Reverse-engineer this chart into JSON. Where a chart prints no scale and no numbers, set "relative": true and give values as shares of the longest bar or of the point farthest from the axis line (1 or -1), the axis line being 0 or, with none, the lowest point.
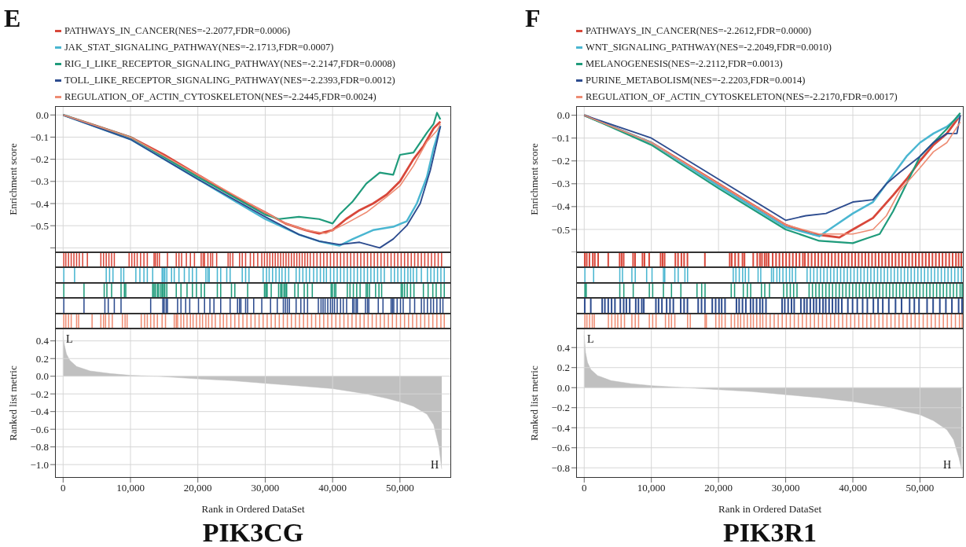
{
  "chart_data": [
    {
      "type": "line",
      "title": "E",
      "ylabel": "Enrichment score",
      "legend": "top",
      "grid": true,
      "tick_labels": "y",
      "xlim": [
        -1200,
        57600
      ],
      "xticks": [
        0,
        10000,
        20000,
        30000,
        40000,
        50000
      ],
      "ylim": [
        -0.62,
        0.04
      ],
      "yticks": [
        {
          "value": -0.6,
          "label": null
        },
        {
          "value": -0.5,
          "label": "−0.5"
        },
        {
          "value": -0.4,
          "label": "−0.4"
        },
        {
          "value": -0.3,
          "label": "−0.3"
        },
        {
          "value": -0.2,
          "label": "−0.2"
        },
        {
          "value": -0.1,
          "label": "−0.1"
        },
        {
          "value": 0,
          "label": "0.0"
        }
      ],
      "series": [
        {
          "name": "PATHWAYS_IN_CANCER(NES=-2.2077,FDR=0.0006)",
          "color": "#d8473a",
          "x": [
            0,
            5000,
            10000,
            15000,
            20000,
            25000,
            30000,
            33000,
            36000,
            38000,
            40000,
            42000,
            44000,
            46000,
            48000,
            50000,
            52000,
            53500,
            55000,
            56000
          ],
          "values": [
            0,
            -0.05,
            -0.1,
            -0.18,
            -0.27,
            -0.36,
            -0.44,
            -0.49,
            -0.52,
            -0.535,
            -0.52,
            -0.47,
            -0.43,
            -0.4,
            -0.36,
            -0.3,
            -0.2,
            -0.14,
            -0.06,
            -0.03
          ]
        },
        {
          "name": "JAK_STAT_SIGNALING_PATHWAY(NES=-2.1713,FDR=0.0007)",
          "color": "#4ab6d1",
          "x": [
            0,
            10000,
            20000,
            30000,
            35000,
            38000,
            41000,
            43000,
            46000,
            49000,
            51000,
            52500,
            54000,
            55000,
            56000
          ],
          "values": [
            0,
            -0.11,
            -0.29,
            -0.47,
            -0.54,
            -0.57,
            -0.59,
            -0.56,
            -0.52,
            -0.505,
            -0.48,
            -0.4,
            -0.28,
            -0.15,
            -0.05
          ]
        },
        {
          "name": "RIG_I_LIKE_RECEPTOR_SIGNALING_PATHWAY(NES=-2.2147,FDR=0.0008)",
          "color": "#1f9b7b",
          "x": [
            0,
            10000,
            20000,
            30000,
            32000,
            35000,
            38000,
            40000,
            41000,
            43000,
            45000,
            47000,
            49000,
            50000,
            52000,
            54000,
            55000,
            55500,
            56000
          ],
          "values": [
            0,
            -0.1,
            -0.28,
            -0.45,
            -0.47,
            -0.46,
            -0.47,
            -0.49,
            -0.45,
            -0.39,
            -0.31,
            -0.26,
            -0.27,
            -0.18,
            -0.17,
            -0.08,
            -0.04,
            0.01,
            -0.02
          ]
        },
        {
          "name": "TOLL_LIKE_RECEPTOR_SIGNALING_PATHWAY(NES=-2.2393,FDR=0.0012)",
          "color": "#2d4c8f",
          "x": [
            0,
            10000,
            20000,
            30000,
            35000,
            38000,
            41000,
            44000,
            47000,
            49000,
            51000,
            53000,
            54500,
            55500,
            56000
          ],
          "values": [
            0,
            -0.11,
            -0.29,
            -0.46,
            -0.54,
            -0.57,
            -0.585,
            -0.575,
            -0.6,
            -0.56,
            -0.5,
            -0.4,
            -0.25,
            -0.12,
            -0.05
          ]
        },
        {
          "name": "REGULATION_OF_ACTIN_CYTOSKELETON(NES=-2.2445,FDR=0.0024)",
          "color": "#ee8c73",
          "x": [
            0,
            10000,
            20000,
            30000,
            33000,
            36000,
            39000,
            42000,
            45000,
            48000,
            50000,
            52000,
            54000,
            55500,
            56000
          ],
          "values": [
            0,
            -0.1,
            -0.27,
            -0.44,
            -0.49,
            -0.52,
            -0.535,
            -0.49,
            -0.44,
            -0.37,
            -0.32,
            -0.23,
            -0.12,
            -0.07,
            -0.04
          ]
        }
      ]
    },
    {
      "type": "bar",
      "relative": true,
      "tick_labels": false,
      "xlim": [
        -1200,
        57600
      ],
      "color": "#d8473a",
      "x": [
        100,
        400,
        800,
        1200,
        1600,
        2000,
        2400,
        2900,
        3600,
        5600,
        6000,
        6400,
        6800,
        7200,
        7600,
        9800,
        10200,
        10600,
        11000,
        11500,
        12000,
        12500,
        13500,
        13700,
        14000,
        14300,
        15500,
        16800,
        17200,
        17600,
        18300,
        18900,
        19500,
        20500,
        20800,
        21000,
        21500,
        21900,
        22200,
        22800,
        24500,
        24800,
        25200,
        26200,
        26600,
        27100,
        27800,
        28300,
        28900,
        29500,
        29900,
        30300,
        30700,
        31100,
        31500,
        31900,
        32300,
        32700,
        33100,
        33500,
        33900,
        34300,
        34700,
        35100,
        35500,
        35900,
        36300,
        36700,
        37200,
        37700,
        38200,
        38700,
        39200,
        39700,
        40200,
        40700,
        41200,
        41700,
        42200,
        42700,
        43200,
        43700,
        44200,
        44700,
        45200,
        45700,
        46200,
        46700,
        47200,
        47700,
        48200,
        48700,
        49200,
        49700,
        50200,
        50700,
        51200,
        51700,
        52200,
        52700,
        53200,
        53700,
        54200,
        54700,
        55200,
        55700,
        56200
      ],
      "values": [
        1,
        1,
        1,
        1,
        1,
        1,
        1,
        1,
        1,
        1,
        1,
        1,
        1,
        1,
        1,
        1,
        1,
        1,
        1,
        1,
        1,
        1,
        1,
        1,
        1,
        1,
        1,
        1,
        1,
        1,
        1,
        1,
        1,
        1,
        1,
        1,
        1,
        1,
        1,
        1,
        1,
        1,
        1,
        1,
        1,
        1,
        1,
        1,
        1,
        1,
        1,
        1,
        1,
        1,
        1,
        1,
        1,
        1,
        1,
        1,
        1,
        1,
        1,
        1,
        1,
        1,
        1,
        1,
        1,
        1,
        1,
        1,
        1,
        1,
        1,
        1,
        1,
        1,
        1,
        1,
        1,
        1,
        1,
        1,
        1,
        1,
        1,
        1,
        1,
        1,
        1,
        1,
        1,
        1,
        1,
        1,
        1,
        1,
        1,
        1,
        1,
        1,
        1,
        1,
        1,
        1,
        1
      ]
    },
    {
      "type": "bar",
      "relative": true,
      "tick_labels": false,
      "xlim": [
        -1200,
        57600
      ],
      "color": "#4ab6d1",
      "x": [
        100,
        1700,
        6400,
        6900,
        7400,
        8600,
        9000,
        10800,
        11400,
        12000,
        12500,
        13300,
        14700,
        14900,
        15100,
        15400,
        16100,
        16500,
        17200,
        18000,
        18700,
        19200,
        19800,
        21200,
        21500,
        21700,
        22900,
        23400,
        24300,
        24800,
        26600,
        27100,
        27600,
        29700,
        30200,
        30600,
        31100,
        31600,
        32100,
        32500,
        33000,
        33500,
        34600,
        35100,
        35600,
        36100,
        36600,
        37200,
        37700,
        38200,
        38700,
        39100,
        39700,
        40200,
        40700,
        41200,
        41700,
        42200,
        42700,
        43200,
        43700,
        44200,
        44700,
        45200,
        45700,
        46200,
        46700,
        47200,
        47700,
        48700,
        49200,
        49700,
        50200,
        50700,
        51200,
        51600,
        52000,
        52500,
        53200,
        54100,
        54600,
        55100,
        55600,
        56100,
        56600
      ],
      "values": [
        1,
        1,
        1,
        1,
        1,
        1,
        1,
        1,
        1,
        1,
        1,
        1,
        1,
        1,
        1,
        1,
        1,
        1,
        1,
        1,
        1,
        1,
        1,
        1,
        1,
        1,
        1,
        1,
        1,
        1,
        1,
        1,
        1,
        1,
        1,
        1,
        1,
        1,
        1,
        1,
        1,
        1,
        1,
        1,
        1,
        1,
        1,
        1,
        1,
        1,
        1,
        1,
        1,
        1,
        1,
        1,
        1,
        1,
        1,
        1,
        1,
        1,
        1,
        1,
        1,
        1,
        1,
        1,
        1,
        1,
        1,
        1,
        1,
        1,
        1,
        1,
        1,
        1,
        1,
        1,
        1,
        1,
        1,
        1,
        1
      ]
    },
    {
      "type": "bar",
      "relative": true,
      "tick_labels": false,
      "xlim": [
        -1200,
        57600
      ],
      "color": "#1f9b7b",
      "x": [
        100,
        3100,
        6100,
        6500,
        7200,
        8600,
        9100,
        9300,
        13300,
        13500,
        13700,
        14000,
        14200,
        14500,
        14700,
        14900,
        15100,
        15400,
        16800,
        17500,
        18400,
        19200,
        19800,
        20500,
        21000,
        22900,
        23400,
        25000,
        25500,
        27400,
        29900,
        30100,
        30300,
        30900,
        32000,
        32300,
        32500,
        32800,
        33000,
        33200,
        34400,
        34900,
        35800,
        36300,
        37000,
        39800,
        40000,
        40300,
        40500,
        42200,
        42600,
        43100,
        43600,
        44100,
        45000,
        45200,
        45500,
        46400,
        46900,
        47300,
        50200,
        50400,
        50700,
        51100,
        51600,
        52100,
        53500,
        54200,
        54900,
        55400,
        56100,
        56600
      ],
      "values": [
        1,
        1,
        1,
        1,
        1,
        1,
        1,
        1,
        1,
        1,
        1,
        1,
        1,
        1,
        1,
        1,
        1,
        1,
        1,
        1,
        1,
        1,
        1,
        1,
        1,
        1,
        1,
        1,
        1,
        1,
        1,
        1,
        1,
        1,
        1,
        1,
        1,
        1,
        1,
        1,
        1,
        1,
        1,
        1,
        1,
        1,
        1,
        1,
        1,
        1,
        1,
        1,
        1,
        1,
        1,
        1,
        1,
        1,
        1,
        1,
        1,
        1,
        1,
        1,
        1,
        1,
        1,
        1,
        1,
        1,
        1,
        1
      ]
    },
    {
      "type": "bar",
      "relative": true,
      "tick_labels": false,
      "xlim": [
        -1200,
        57600
      ],
      "color": "#2d4c8f",
      "x": [
        100,
        3100,
        6200,
        6700,
        7600,
        8600,
        13000,
        14800,
        15000,
        15300,
        15500,
        17000,
        17500,
        18200,
        18800,
        20100,
        21000,
        21800,
        22400,
        23400,
        24800,
        25900,
        26200,
        26400,
        27100,
        27400,
        28300,
        29500,
        30800,
        31800,
        32700,
        33000,
        33300,
        33600,
        34600,
        35300,
        35800,
        36300,
        37900,
        38300,
        38600,
        38900,
        39300,
        39700,
        40000,
        40300,
        40700,
        41200,
        41600,
        42100,
        43000,
        43200,
        43500,
        43700,
        44900,
        45200,
        45400,
        46800,
        47500,
        48700,
        48900,
        49100,
        49600,
        50100,
        50500,
        51500,
        52200,
        53200,
        53600,
        54100,
        54600,
        55000,
        55500,
        56000,
        56400
      ],
      "values": [
        1,
        1,
        1,
        1,
        1,
        1,
        1,
        1,
        1,
        1,
        1,
        1,
        1,
        1,
        1,
        1,
        1,
        1,
        1,
        1,
        1,
        1,
        1,
        1,
        1,
        1,
        1,
        1,
        1,
        1,
        1,
        1,
        1,
        1,
        1,
        1,
        1,
        1,
        1,
        1,
        1,
        1,
        1,
        1,
        1,
        1,
        1,
        1,
        1,
        1,
        1,
        1,
        1,
        1,
        1,
        1,
        1,
        1,
        1,
        1,
        1,
        1,
        1,
        1,
        1,
        1,
        1,
        1,
        1,
        1,
        1,
        1,
        1,
        1,
        1
      ]
    },
    {
      "type": "bar",
      "relative": true,
      "tick_labels": false,
      "xlim": [
        -1200,
        57600
      ],
      "color": "#ee8c73",
      "x": [
        100,
        400,
        800,
        1200,
        2000,
        2300,
        4300,
        5600,
        6000,
        6300,
        6800,
        7300,
        8800,
        9200,
        9500,
        11600,
        12100,
        12500,
        13000,
        13500,
        14000,
        14700,
        15200,
        16500,
        16800,
        17000,
        17500,
        17900,
        18400,
        18900,
        19300,
        19800,
        20300,
        20700,
        21200,
        21600,
        22100,
        22600,
        23300,
        23800,
        24300,
        24900,
        25500,
        26100,
        26700,
        27300,
        27900,
        28500,
        29100,
        29700,
        30300,
        30900,
        31500,
        32100,
        32700,
        33300,
        33900,
        34500,
        35100,
        35700,
        36300,
        36900,
        37500,
        38100,
        38700,
        39300,
        39900,
        40500,
        41100,
        41700,
        42300,
        42900,
        43500,
        44100,
        44700,
        45300,
        45900,
        46500,
        47100,
        47700,
        48300,
        48900,
        49500,
        50100,
        50700,
        51300,
        51900,
        52500,
        53100,
        53700,
        54300,
        54900,
        55500,
        56100,
        56600
      ],
      "values": [
        1,
        1,
        1,
        1,
        1,
        1,
        1,
        1,
        1,
        1,
        1,
        1,
        1,
        1,
        1,
        1,
        1,
        1,
        1,
        1,
        1,
        1,
        1,
        1,
        1,
        1,
        1,
        1,
        1,
        1,
        1,
        1,
        1,
        1,
        1,
        1,
        1,
        1,
        1,
        1,
        1,
        1,
        1,
        1,
        1,
        1,
        1,
        1,
        1,
        1,
        1,
        1,
        1,
        1,
        1,
        1,
        1,
        1,
        1,
        1,
        1,
        1,
        1,
        1,
        1,
        1,
        1,
        1,
        1,
        1,
        1,
        1,
        1,
        1,
        1,
        1,
        1,
        1,
        1,
        1,
        1,
        1,
        1,
        1,
        1,
        1,
        1,
        1,
        1,
        1,
        1,
        1,
        1,
        1,
        1
      ]
    },
    {
      "type": "area",
      "color": "#c0c0c0",
      "xlabel": "Rank in Ordered DataSet",
      "ylabel": "Ranked list metric",
      "grid": true,
      "xlim": [
        -1200,
        57600
      ],
      "xticks": [
        0,
        {
          "value": 10000,
          "label": "10,000"
        },
        {
          "value": 20000,
          "label": "20,000"
        },
        {
          "value": 30000,
          "label": "30,000"
        },
        {
          "value": 40000,
          "label": "40,000"
        },
        {
          "value": 50000,
          "label": "50,000"
        }
      ],
      "ylim": [
        -1.15,
        0.54
      ],
      "yticks": [
        {
          "value": -1.0,
          "label": "−1.0"
        },
        {
          "value": -0.8,
          "label": "−0.8"
        },
        {
          "value": -0.6,
          "label": "−0.6"
        },
        {
          "value": -0.4,
          "label": "−0.4"
        },
        {
          "value": -0.2,
          "label": "−0.2"
        },
        {
          "value": 0,
          "label": "0.0"
        },
        {
          "value": 0.2,
          "label": "0.2"
        },
        {
          "value": 0.4,
          "label": "0.4"
        }
      ],
      "x": [
        0,
        200,
        500,
        1000,
        2000,
        4000,
        7000,
        10000,
        14000,
        20000,
        25000,
        30000,
        35000,
        40000,
        45000,
        48000,
        50000,
        52000,
        54000,
        55000,
        55800,
        56200
      ],
      "values": [
        0.45,
        0.35,
        0.25,
        0.18,
        0.11,
        0.06,
        0.03,
        0.01,
        0,
        -0.03,
        -0.05,
        -0.08,
        -0.11,
        -0.14,
        -0.2,
        -0.25,
        -0.29,
        -0.34,
        -0.43,
        -0.55,
        -0.8,
        -1.05
      ],
      "annotations": [
        "L",
        "H",
        "PIK3CG"
      ]
    },
    {
      "type": "line",
      "title": "F",
      "ylabel": "Enrichment score",
      "legend": "top",
      "grid": true,
      "tick_labels": "y",
      "xlim": [
        -1200,
        56500
      ],
      "xticks": [
        0,
        10000,
        20000,
        30000,
        40000,
        50000
      ],
      "ylim": [
        -0.6,
        0.04
      ],
      "yticks": [
        {
          "value": -0.6,
          "label": null
        },
        {
          "value": -0.5,
          "label": "−0.5"
        },
        {
          "value": -0.4,
          "label": "−0.4"
        },
        {
          "value": -0.3,
          "label": "−0.3"
        },
        {
          "value": -0.2,
          "label": "−0.2"
        },
        {
          "value": -0.1,
          "label": "−0.1"
        },
        {
          "value": 0,
          "label": "0.0"
        }
      ],
      "series": [
        {
          "name": "PATHWAYS_IN_CANCER(NES=-2.2612,FDR=0.0000)",
          "color": "#d8473a",
          "x": [
            0,
            10000,
            20000,
            30000,
            34000,
            38000,
            40000,
            43000,
            46000,
            48000,
            50000,
            52000,
            54000,
            56000
          ],
          "values": [
            0,
            -0.12,
            -0.3,
            -0.48,
            -0.52,
            -0.535,
            -0.5,
            -0.45,
            -0.35,
            -0.28,
            -0.2,
            -0.13,
            -0.08,
            0
          ]
        },
        {
          "name": "WNT_SIGNALING_PATHWAY(NES=-2.2049,FDR=0.0010)",
          "color": "#4ab6d1",
          "x": [
            0,
            10000,
            20000,
            30000,
            35000,
            37000,
            40000,
            43000,
            45000,
            48000,
            50000,
            52000,
            54000,
            56000
          ],
          "values": [
            0,
            -0.12,
            -0.31,
            -0.49,
            -0.53,
            -0.49,
            -0.43,
            -0.38,
            -0.3,
            -0.18,
            -0.12,
            -0.08,
            -0.05,
            0
          ]
        },
        {
          "name": "MELANOGENESIS(NES=-2.2112,FDR=0.0013)",
          "color": "#1f9b7b",
          "x": [
            0,
            10000,
            20000,
            30000,
            35000,
            40000,
            42000,
            44000,
            46000,
            48000,
            50000,
            52000,
            54000,
            56000
          ],
          "values": [
            0,
            -0.13,
            -0.32,
            -0.5,
            -0.55,
            -0.56,
            -0.54,
            -0.52,
            -0.42,
            -0.3,
            -0.18,
            -0.12,
            -0.06,
            0.01
          ]
        },
        {
          "name": "PURINE_METABOLISM(NES=-2.2203,FDR=0.0014)",
          "color": "#2d4c8f",
          "x": [
            0,
            10000,
            20000,
            30000,
            33000,
            36000,
            40000,
            43000,
            45000,
            47000,
            50000,
            52000,
            54000,
            55500,
            56000
          ],
          "values": [
            0,
            -0.1,
            -0.28,
            -0.46,
            -0.44,
            -0.43,
            -0.38,
            -0.37,
            -0.3,
            -0.25,
            -0.18,
            -0.12,
            -0.08,
            -0.08,
            0
          ]
        },
        {
          "name": "REGULATION_OF_ACTIN_CYTOSKELETON(NES=-2.2170,FDR=0.0017)",
          "color": "#ee8c73",
          "x": [
            0,
            10000,
            20000,
            30000,
            35000,
            40000,
            43000,
            45000,
            47000,
            50000,
            52000,
            54000,
            56000
          ],
          "values": [
            0,
            -0.12,
            -0.3,
            -0.48,
            -0.52,
            -0.52,
            -0.5,
            -0.44,
            -0.33,
            -0.23,
            -0.16,
            -0.12,
            -0.03
          ]
        }
      ]
    },
    {
      "type": "bar",
      "relative": true,
      "tick_labels": false,
      "xlim": [
        -1200,
        56500
      ],
      "color": "#d8473a",
      "x": [
        100,
        400,
        800,
        1300,
        1600,
        2100,
        3600,
        5300,
        5600,
        5900,
        7300,
        7600,
        8700,
        9000,
        9700,
        11400,
        11700,
        12000,
        13600,
        14000,
        14500,
        14900,
        15400,
        18000,
        21700,
        22000,
        22500,
        23000,
        23600,
        23900,
        25200,
        25800,
        26200,
        26500,
        26900,
        27200,
        27500,
        28100,
        28600,
        29100,
        29600,
        30100,
        30600,
        31100,
        31600,
        32100,
        32600,
        32900,
        33400,
        33900,
        34400,
        34900,
        35400,
        35900,
        36400,
        36900,
        37400,
        37900,
        38400,
        38900,
        39400,
        39900,
        40400,
        40900,
        41400,
        41900,
        42400,
        42900,
        43400,
        43900,
        44400,
        44900,
        45400,
        45900,
        46400,
        46900,
        47400,
        47900,
        48400,
        48900,
        49400,
        49900,
        50400,
        50900,
        51400,
        51900,
        52400,
        52900,
        53400,
        53900,
        54400,
        54900,
        55400,
        55800,
        56200
      ],
      "values": [
        1,
        1,
        1,
        1,
        1,
        1,
        1,
        1,
        1,
        1,
        1,
        1,
        1,
        1,
        1,
        1,
        1,
        1,
        1,
        1,
        1,
        1,
        1,
        1,
        1,
        1,
        1,
        1,
        1,
        1,
        1,
        1,
        1,
        1,
        1,
        1,
        1,
        1,
        1,
        1,
        1,
        1,
        1,
        1,
        1,
        1,
        1,
        1,
        1,
        1,
        1,
        1,
        1,
        1,
        1,
        1,
        1,
        1,
        1,
        1,
        1,
        1,
        1,
        1,
        1,
        1,
        1,
        1,
        1,
        1,
        1,
        1,
        1,
        1,
        1,
        1,
        1,
        1,
        1,
        1,
        1,
        1,
        1,
        1,
        1,
        1,
        1,
        1,
        1,
        1,
        1,
        1,
        1,
        1,
        1
      ]
    },
    {
      "type": "bar",
      "relative": true,
      "tick_labels": false,
      "xlim": [
        -1200,
        56500
      ],
      "color": "#4ab6d1",
      "x": [
        100,
        1400,
        5300,
        5700,
        7100,
        7600,
        9300,
        10100,
        11800,
        12000,
        13500,
        14000,
        15000,
        15400,
        22200,
        22600,
        23100,
        23600,
        24000,
        24500,
        25900,
        26300,
        27900,
        28200,
        28700,
        29100,
        29600,
        30100,
        30600,
        31000,
        31500,
        33200,
        33700,
        34200,
        34700,
        35200,
        35700,
        36200,
        36700,
        37200,
        37700,
        38200,
        38700,
        39200,
        39700,
        40200,
        40700,
        41200,
        41700,
        42200,
        42700,
        43200,
        43700,
        44200,
        44700,
        45200,
        45700,
        46200,
        46700,
        47200,
        47700,
        48200,
        48700,
        49200,
        49700,
        50200,
        50700,
        51200,
        51700,
        52200,
        52700,
        53200,
        53700,
        54200,
        54700,
        55200,
        55700,
        56200
      ],
      "values": [
        1,
        1,
        1,
        1,
        1,
        1,
        1,
        1,
        1,
        1,
        1,
        1,
        1,
        1,
        1,
        1,
        1,
        1,
        1,
        1,
        1,
        1,
        1,
        1,
        1,
        1,
        1,
        1,
        1,
        1,
        1,
        1,
        1,
        1,
        1,
        1,
        1,
        1,
        1,
        1,
        1,
        1,
        1,
        1,
        1,
        1,
        1,
        1,
        1,
        1,
        1,
        1,
        1,
        1,
        1,
        1,
        1,
        1,
        1,
        1,
        1,
        1,
        1,
        1,
        1,
        1,
        1,
        1,
        1,
        1,
        1,
        1,
        1,
        1,
        1,
        1,
        1,
        1
      ]
    },
    {
      "type": "bar",
      "relative": true,
      "tick_labels": false,
      "xlim": [
        -1200,
        56500
      ],
      "color": "#1f9b7b",
      "x": [
        100,
        300,
        5300,
        5900,
        7300,
        9700,
        10200,
        11800,
        13000,
        14400,
        16800,
        17500,
        18000,
        21900,
        22400,
        23700,
        24300,
        24800,
        26400,
        26900,
        27600,
        29700,
        30200,
        30700,
        31200,
        31700,
        33500,
        34000,
        34500,
        35000,
        35500,
        36000,
        36500,
        37000,
        37500,
        38000,
        38500,
        39000,
        39500,
        40000,
        40500,
        41000,
        41500,
        42000,
        42500,
        43000,
        43500,
        44000,
        44500,
        45000,
        45500,
        46000,
        46500,
        47000,
        47500,
        48000,
        48500,
        49000,
        49500,
        50000,
        50500,
        51000,
        51500,
        52000,
        52500,
        53000,
        53500,
        54000,
        54500,
        55000,
        55500,
        56000,
        56300
      ],
      "values": [
        1,
        1,
        1,
        1,
        1,
        1,
        1,
        1,
        1,
        1,
        1,
        1,
        1,
        1,
        1,
        1,
        1,
        1,
        1,
        1,
        1,
        1,
        1,
        1,
        1,
        1,
        1,
        1,
        1,
        1,
        1,
        1,
        1,
        1,
        1,
        1,
        1,
        1,
        1,
        1,
        1,
        1,
        1,
        1,
        1,
        1,
        1,
        1,
        1,
        1,
        1,
        1,
        1,
        1,
        1,
        1,
        1,
        1,
        1,
        1,
        1,
        1,
        1,
        1,
        1,
        1,
        1,
        1,
        1,
        1,
        1,
        1,
        1
      ]
    },
    {
      "type": "bar",
      "relative": true,
      "tick_labels": false,
      "xlim": [
        -1200,
        56500
      ],
      "color": "#2d4c8f",
      "x": [
        100,
        1000,
        2700,
        3100,
        3600,
        4100,
        4600,
        5400,
        5900,
        6300,
        6800,
        7700,
        8100,
        8600,
        8900,
        10700,
        11100,
        11600,
        12300,
        12800,
        13300,
        14400,
        14900,
        15400,
        17000,
        17500,
        18000,
        19100,
        19600,
        20100,
        20500,
        21000,
        22700,
        23100,
        23600,
        24100,
        24800,
        25200,
        25700,
        26200,
        26600,
        27100,
        29500,
        29900,
        30400,
        30900,
        31300,
        32300,
        32800,
        33200,
        33700,
        34200,
        34600,
        35100,
        35600,
        36000,
        36500,
        37000,
        37500,
        37900,
        38400,
        39300,
        40000,
        40700,
        41500,
        42200,
        43100,
        43800,
        44500,
        45400,
        46400,
        47300,
        48500,
        49200,
        49900,
        51100,
        52000,
        53000,
        53900,
        54800,
        55800,
        56300
      ],
      "values": [
        1,
        1,
        1,
        1,
        1,
        1,
        1,
        1,
        1,
        1,
        1,
        1,
        1,
        1,
        1,
        1,
        1,
        1,
        1,
        1,
        1,
        1,
        1,
        1,
        1,
        1,
        1,
        1,
        1,
        1,
        1,
        1,
        1,
        1,
        1,
        1,
        1,
        1,
        1,
        1,
        1,
        1,
        1,
        1,
        1,
        1,
        1,
        1,
        1,
        1,
        1,
        1,
        1,
        1,
        1,
        1,
        1,
        1,
        1,
        1,
        1,
        1,
        1,
        1,
        1,
        1,
        1,
        1,
        1,
        1,
        1,
        1,
        1,
        1,
        1,
        1,
        1,
        1,
        1,
        1,
        1,
        1
      ]
    },
    {
      "type": "bar",
      "relative": true,
      "tick_labels": false,
      "xlim": [
        -1200,
        56500
      ],
      "color": "#ee8c73",
      "x": [
        100,
        400,
        800,
        1200,
        1500,
        3600,
        4100,
        4600,
        5000,
        5500,
        6000,
        7100,
        7600,
        8100,
        9700,
        10200,
        10700,
        12100,
        12600,
        13000,
        13500,
        15400,
        15800,
        18000,
        18200,
        19600,
        20100,
        20500,
        21000,
        21900,
        22400,
        22900,
        23300,
        23800,
        24300,
        24800,
        25200,
        25700,
        26200,
        26600,
        27100,
        27700,
        28300,
        28900,
        29500,
        30100,
        30700,
        31300,
        31900,
        32500,
        33100,
        33700,
        34300,
        34900,
        35500,
        36100,
        36700,
        37300,
        37900,
        38500,
        39100,
        39700,
        40300,
        40900,
        41500,
        42100,
        42700,
        43300,
        43900,
        44500,
        45100,
        45700,
        46300,
        46900,
        47500,
        48100,
        48700,
        49300,
        49900,
        50500,
        51100,
        51700,
        52300,
        52900,
        53500,
        54100,
        54700,
        55300,
        55900,
        56300
      ],
      "values": [
        1,
        1,
        1,
        1,
        1,
        1,
        1,
        1,
        1,
        1,
        1,
        1,
        1,
        1,
        1,
        1,
        1,
        1,
        1,
        1,
        1,
        1,
        1,
        1,
        1,
        1,
        1,
        1,
        1,
        1,
        1,
        1,
        1,
        1,
        1,
        1,
        1,
        1,
        1,
        1,
        1,
        1,
        1,
        1,
        1,
        1,
        1,
        1,
        1,
        1,
        1,
        1,
        1,
        1,
        1,
        1,
        1,
        1,
        1,
        1,
        1,
        1,
        1,
        1,
        1,
        1,
        1,
        1,
        1,
        1,
        1,
        1,
        1,
        1,
        1,
        1,
        1,
        1,
        1,
        1,
        1,
        1,
        1,
        1,
        1,
        1,
        1,
        1,
        1,
        1
      ]
    },
    {
      "type": "area",
      "color": "#c0c0c0",
      "xlabel": "Rank in Ordered DataSet",
      "ylabel": "Ranked list metric",
      "grid": true,
      "xlim": [
        -1200,
        56500
      ],
      "xticks": [
        0,
        {
          "value": 10000,
          "label": "10,000"
        },
        {
          "value": 20000,
          "label": "20,000"
        },
        {
          "value": 30000,
          "label": "30,000"
        },
        {
          "value": 40000,
          "label": "40,000"
        },
        {
          "value": 50000,
          "label": "50,000"
        }
      ],
      "ylim": [
        -0.9,
        0.59
      ],
      "yticks": [
        {
          "value": -0.8,
          "label": "−0.8"
        },
        {
          "value": -0.6,
          "label": "−0.6"
        },
        {
          "value": -0.4,
          "label": "−0.4"
        },
        {
          "value": -0.2,
          "label": "−0.2"
        },
        {
          "value": 0,
          "label": "0.0"
        },
        {
          "value": 0.2,
          "label": "0.2"
        },
        {
          "value": 0.4,
          "label": "0.4"
        }
      ],
      "x": [
        0,
        200,
        500,
        1000,
        2000,
        4000,
        7000,
        10000,
        15000,
        20000,
        25000,
        30000,
        35000,
        40000,
        45000,
        48000,
        50000,
        52000,
        54000,
        55000,
        55800,
        56200
      ],
      "values": [
        0.52,
        0.35,
        0.25,
        0.18,
        0.12,
        0.07,
        0.04,
        0.02,
        0,
        -0.02,
        -0.04,
        -0.07,
        -0.1,
        -0.14,
        -0.19,
        -0.24,
        -0.27,
        -0.33,
        -0.42,
        -0.52,
        -0.7,
        -0.82
      ],
      "annotations": [
        "L",
        "H",
        "PIK3R1"
      ]
    }
  ]
}
